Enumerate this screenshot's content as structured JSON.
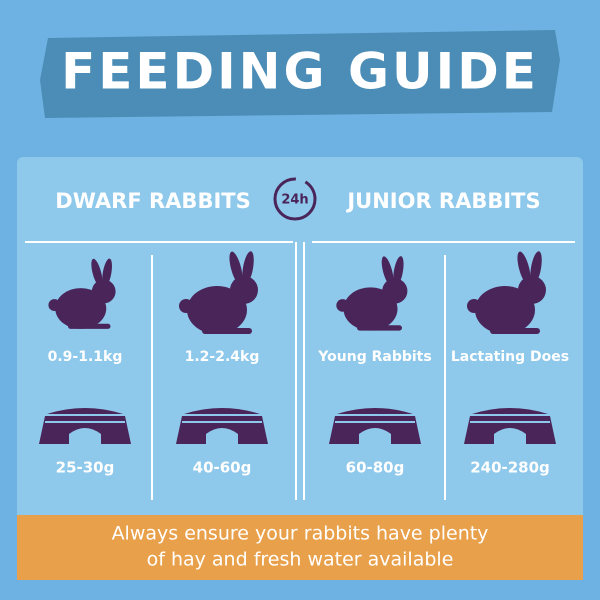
{
  "header": {
    "title": "FEEDING GUIDE"
  },
  "badge": "24h",
  "sections": [
    {
      "title": "DWARF RABBITS",
      "columns": [
        {
          "label": "0.9-1.1kg",
          "amount": "25-30g"
        },
        {
          "label": "1.2-2.4kg",
          "amount": "40-60g"
        }
      ]
    },
    {
      "title": "JUNIOR RABBITS",
      "columns": [
        {
          "label": "Young Rabbits",
          "amount": "60-80g"
        },
        {
          "label": "Lactating Does",
          "amount": "240-280g"
        }
      ]
    }
  ],
  "footer": {
    "lines": [
      "Always ensure your rabbits have plenty",
      "of hay and fresh water available"
    ]
  }
}
